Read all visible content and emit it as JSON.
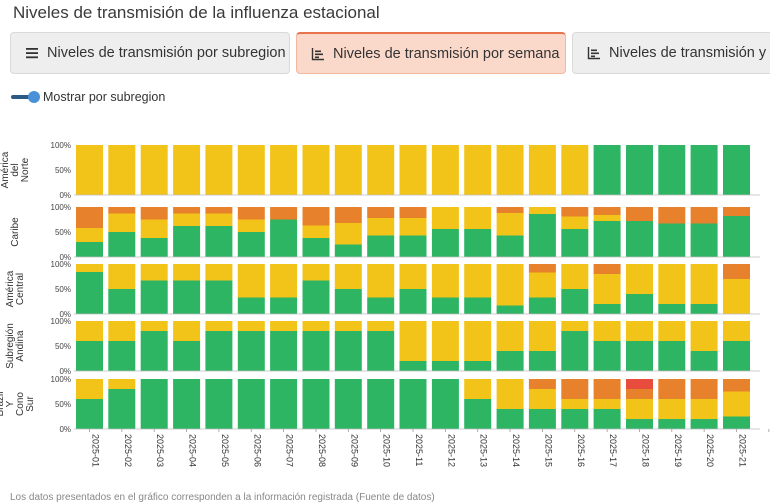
{
  "page": {
    "title": "Niveles de transmisión de la influenza estacional"
  },
  "tabs": [
    {
      "label": "Niveles de transmisión por subregion",
      "icon": "list-icon",
      "active": false
    },
    {
      "label": "Niveles de transmisión por semana",
      "icon": "bar-chart-icon",
      "active": true
    },
    {
      "label": "Niveles de transmisión y te",
      "icon": "bar-chart-icon",
      "active": false
    }
  ],
  "toggle": {
    "label": "Mostrar por subregion",
    "on": true
  },
  "colors": {
    "green": "#2db564",
    "yellow": "#f2c41a",
    "orange": "#e8812b",
    "red": "#e84c3d",
    "tab_active_bg": "#fbd9ca",
    "tab_active_border": "#e8734d",
    "toggle": "#4a90d9"
  },
  "footnote": "Los datos presentados en el gráfico corresponden a la información registrada (Fuente de datos)",
  "chart_data": {
    "type": "bar",
    "stacked": true,
    "percent": true,
    "categories": [
      "2025-01",
      "2025-02",
      "2025-03",
      "2025-04",
      "2025-05",
      "2025-06",
      "2025-07",
      "2025-08",
      "2025-09",
      "2025-10",
      "2025-11",
      "2025-12",
      "2025-13",
      "2025-14",
      "2025-15",
      "2025-16",
      "2025-17",
      "2025-18",
      "2025-19",
      "2025-20",
      "2025-21",
      "2025-22"
    ],
    "yticks": [
      "0%",
      "50%",
      "100%"
    ],
    "panels": [
      {
        "name": "América del Norte",
        "label_lines": [
          "América",
          "del",
          "Norte"
        ],
        "values": [
          [
            0,
            100,
            0,
            0
          ],
          [
            0,
            100,
            0,
            0
          ],
          [
            0,
            100,
            0,
            0
          ],
          [
            0,
            100,
            0,
            0
          ],
          [
            0,
            100,
            0,
            0
          ],
          [
            0,
            100,
            0,
            0
          ],
          [
            0,
            100,
            0,
            0
          ],
          [
            0,
            100,
            0,
            0
          ],
          [
            0,
            100,
            0,
            0
          ],
          [
            0,
            100,
            0,
            0
          ],
          [
            0,
            100,
            0,
            0
          ],
          [
            0,
            100,
            0,
            0
          ],
          [
            0,
            100,
            0,
            0
          ],
          [
            0,
            100,
            0,
            0
          ],
          [
            0,
            100,
            0,
            0
          ],
          [
            0,
            100,
            0,
            0
          ],
          [
            100,
            0,
            0,
            0
          ],
          [
            100,
            0,
            0,
            0
          ],
          [
            100,
            0,
            0,
            0
          ],
          [
            100,
            0,
            0,
            0
          ],
          [
            100,
            0,
            0,
            0
          ],
          null
        ]
      },
      {
        "name": "Caribe",
        "label_lines": [
          "Caribe"
        ],
        "values": [
          [
            30,
            28,
            42,
            0
          ],
          [
            50,
            37,
            13,
            0
          ],
          [
            38,
            37,
            25,
            0
          ],
          [
            62,
            25,
            13,
            0
          ],
          [
            62,
            25,
            13,
            0
          ],
          [
            50,
            25,
            25,
            0
          ],
          [
            75,
            0,
            25,
            0
          ],
          [
            38,
            25,
            37,
            0
          ],
          [
            25,
            43,
            32,
            0
          ],
          [
            43,
            35,
            22,
            0
          ],
          [
            43,
            35,
            22,
            0
          ],
          [
            56,
            44,
            0,
            0
          ],
          [
            56,
            44,
            0,
            0
          ],
          [
            43,
            45,
            12,
            0
          ],
          [
            86,
            14,
            0,
            0
          ],
          [
            56,
            25,
            19,
            0
          ],
          [
            72,
            12,
            16,
            0
          ],
          [
            72,
            0,
            28,
            0
          ],
          [
            67,
            0,
            33,
            0
          ],
          [
            67,
            0,
            33,
            0
          ],
          [
            82,
            0,
            18,
            0
          ],
          null
        ]
      },
      {
        "name": "América Central",
        "label_lines": [
          "América",
          "Central"
        ],
        "values": [
          [
            84,
            16,
            0,
            0
          ],
          [
            50,
            50,
            0,
            0
          ],
          [
            67,
            33,
            0,
            0
          ],
          [
            67,
            33,
            0,
            0
          ],
          [
            67,
            33,
            0,
            0
          ],
          [
            33,
            67,
            0,
            0
          ],
          [
            33,
            67,
            0,
            0
          ],
          [
            67,
            33,
            0,
            0
          ],
          [
            50,
            50,
            0,
            0
          ],
          [
            33,
            67,
            0,
            0
          ],
          [
            50,
            50,
            0,
            0
          ],
          [
            33,
            67,
            0,
            0
          ],
          [
            33,
            67,
            0,
            0
          ],
          [
            17,
            83,
            0,
            0
          ],
          [
            33,
            50,
            17,
            0
          ],
          [
            50,
            50,
            0,
            0
          ],
          [
            20,
            60,
            20,
            0
          ],
          [
            40,
            60,
            0,
            0
          ],
          [
            20,
            80,
            0,
            0
          ],
          [
            20,
            80,
            0,
            0
          ],
          [
            0,
            70,
            30,
            0
          ],
          null
        ]
      },
      {
        "name": "Subregión Andina",
        "label_lines": [
          "Subregión",
          "Andina"
        ],
        "values": [
          [
            60,
            40,
            0,
            0
          ],
          [
            60,
            40,
            0,
            0
          ],
          [
            80,
            20,
            0,
            0
          ],
          [
            60,
            40,
            0,
            0
          ],
          [
            80,
            20,
            0,
            0
          ],
          [
            80,
            20,
            0,
            0
          ],
          [
            80,
            20,
            0,
            0
          ],
          [
            80,
            20,
            0,
            0
          ],
          [
            80,
            20,
            0,
            0
          ],
          [
            80,
            20,
            0,
            0
          ],
          [
            20,
            80,
            0,
            0
          ],
          [
            20,
            80,
            0,
            0
          ],
          [
            20,
            80,
            0,
            0
          ],
          [
            40,
            60,
            0,
            0
          ],
          [
            40,
            60,
            0,
            0
          ],
          [
            80,
            20,
            0,
            0
          ],
          [
            60,
            40,
            0,
            0
          ],
          [
            60,
            40,
            0,
            0
          ],
          [
            60,
            40,
            0,
            0
          ],
          [
            40,
            60,
            0,
            0
          ],
          [
            60,
            40,
            0,
            0
          ],
          null
        ]
      },
      {
        "name": "Brazil y Cono Sur",
        "label_lines": [
          "Brazil",
          "Y",
          "Cono",
          "Sur"
        ],
        "values": [
          [
            60,
            40,
            0,
            0
          ],
          [
            80,
            20,
            0,
            0
          ],
          [
            100,
            0,
            0,
            0
          ],
          [
            100,
            0,
            0,
            0
          ],
          [
            100,
            0,
            0,
            0
          ],
          [
            100,
            0,
            0,
            0
          ],
          [
            100,
            0,
            0,
            0
          ],
          [
            100,
            0,
            0,
            0
          ],
          [
            100,
            0,
            0,
            0
          ],
          [
            100,
            0,
            0,
            0
          ],
          [
            100,
            0,
            0,
            0
          ],
          [
            100,
            0,
            0,
            0
          ],
          [
            60,
            40,
            0,
            0
          ],
          [
            40,
            60,
            0,
            0
          ],
          [
            40,
            40,
            20,
            0
          ],
          [
            40,
            20,
            40,
            0
          ],
          [
            40,
            20,
            40,
            0
          ],
          [
            20,
            40,
            20,
            20
          ],
          [
            20,
            40,
            40,
            0
          ],
          [
            20,
            40,
            40,
            0
          ],
          [
            25,
            50,
            25,
            0
          ],
          null
        ]
      }
    ],
    "series": [
      {
        "name": "green",
        "color": "#2db564"
      },
      {
        "name": "yellow",
        "color": "#f2c41a"
      },
      {
        "name": "orange",
        "color": "#e8812b"
      },
      {
        "name": "red",
        "color": "#e84c3d"
      }
    ]
  }
}
